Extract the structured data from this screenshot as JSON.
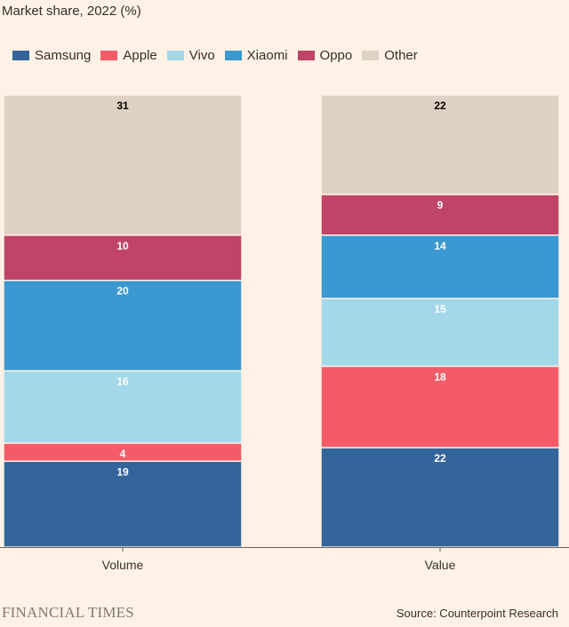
{
  "chart_data": {
    "type": "bar",
    "stacked": true,
    "title": "Market share, 2022 (%)",
    "categories": [
      "Volume",
      "Value"
    ],
    "series": [
      {
        "name": "Samsung",
        "color": "#33649a",
        "label_color": "#ffffff",
        "values": [
          19,
          22
        ]
      },
      {
        "name": "Apple",
        "color": "#f45b69",
        "label_color": "#ffffff",
        "values": [
          4,
          18
        ]
      },
      {
        "name": "Vivo",
        "color": "#a3d8e8",
        "label_color": "#ffffff",
        "values": [
          16,
          15
        ]
      },
      {
        "name": "Xiaomi",
        "color": "#3b98d0",
        "label_color": "#ffffff",
        "values": [
          20,
          14
        ]
      },
      {
        "name": "Oppo",
        "color": "#bf4467",
        "label_color": "#ffffff",
        "values": [
          10,
          9
        ]
      },
      {
        "name": "Other",
        "color": "#dfd1c3",
        "label_color": "#000000",
        "values": [
          31,
          22
        ]
      }
    ],
    "ylim": [
      0,
      100
    ],
    "legend_position": "top-left"
  },
  "source": "Source: Counterpoint Research",
  "logo": "FINANCIAL TIMES"
}
